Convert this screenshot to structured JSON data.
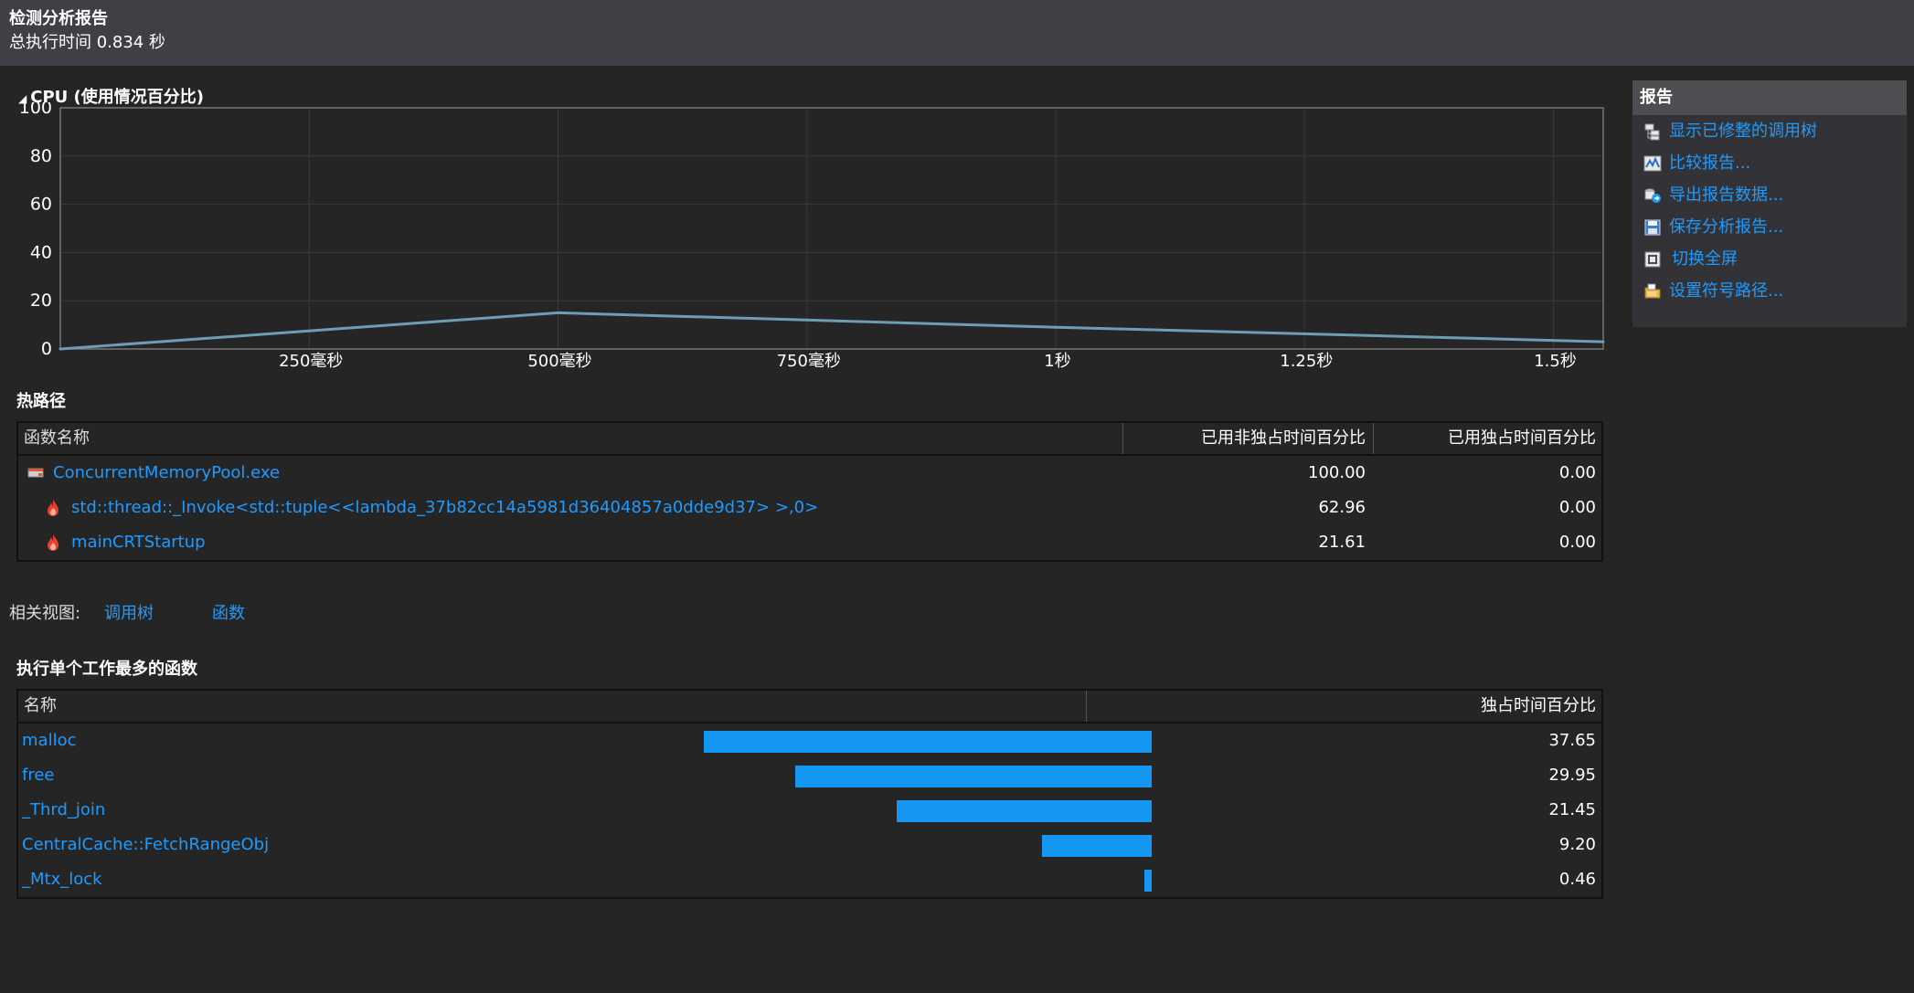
{
  "header": {
    "title": "检测分析报告",
    "subtitle": "总执行时间 0.834 秒"
  },
  "cpu": {
    "title": "CPU (使用情况百分比)",
    "collapse_glyph": "◢"
  },
  "chart_data": {
    "type": "line",
    "title": "CPU (使用情况百分比)",
    "xlabel": "",
    "ylabel": "",
    "xlim": [
      0,
      1.55
    ],
    "ylim": [
      0,
      100
    ],
    "y_ticks": [
      "100",
      "80",
      "60",
      "40",
      "20",
      "0"
    ],
    "x_tick_labels": [
      "250毫秒",
      "500毫秒",
      "750毫秒",
      "1秒",
      "1.25秒",
      "1.5秒"
    ],
    "grid": true,
    "series": [
      {
        "x": [
          0,
          0.5,
          1.0,
          1.55
        ],
        "y": [
          0,
          15,
          9,
          3
        ]
      }
    ],
    "colors": {
      "line": "#6e9cb5",
      "grid": "#3a3a3a",
      "axis": "#777777"
    }
  },
  "hotpath": {
    "title": "热路径",
    "columns": [
      "函数名称",
      "已用非独占时间百分比",
      "已用独占时间百分比"
    ],
    "rows": [
      {
        "name": "ConcurrentMemoryPool.exe",
        "incl": "100.00",
        "excl": "0.00",
        "icon": "exe-icon"
      },
      {
        "name": "std::thread::_Invoke<std::tuple<<lambda_37b82cc14a5981d36404857a0dde9d37> >,0>",
        "incl": "62.96",
        "excl": "0.00",
        "icon": "hot-path-flame-icon"
      },
      {
        "name": "mainCRTStartup",
        "incl": "21.61",
        "excl": "0.00",
        "icon": "hot-path-flame-icon"
      }
    ]
  },
  "related": {
    "label": "相关视图:",
    "links": [
      "调用树",
      "函数"
    ]
  },
  "topfuncs": {
    "title": "执行单个工作最多的函数",
    "columns": [
      "名称",
      "独占时间百分比"
    ],
    "rows": [
      {
        "name": "malloc",
        "value": "37.65",
        "pct": 37.65
      },
      {
        "name": "free",
        "value": "29.95",
        "pct": 29.95
      },
      {
        "name": "_Thrd_join",
        "value": "21.45",
        "pct": 21.45
      },
      {
        "name": "CentralCache::FetchRangeObj",
        "value": "9.20",
        "pct": 9.2
      },
      {
        "name": "_Mtx_lock",
        "value": "0.46",
        "pct": 0.46
      }
    ],
    "bar_color": "#1397f0"
  },
  "reports": {
    "title": "报告",
    "items": [
      {
        "label": "显示已修整的调用树",
        "icon": "trimmed-call-tree-icon"
      },
      {
        "label": "比较报告...",
        "icon": "compare-report-icon"
      },
      {
        "label": "导出报告数据...",
        "icon": "export-data-icon"
      },
      {
        "label": "保存分析报告...",
        "icon": "save-icon"
      },
      {
        "label": "切换全屏",
        "icon": "fullscreen-icon"
      },
      {
        "label": "设置符号路径...",
        "icon": "symbol-path-folder-icon"
      }
    ]
  }
}
